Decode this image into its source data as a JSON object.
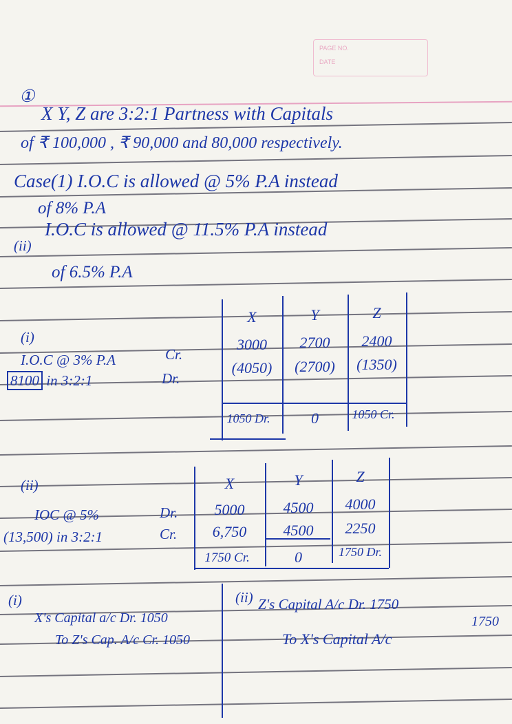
{
  "header": {
    "page_no_label": "PAGE NO.",
    "date_label": "DATE"
  },
  "question": {
    "number": "①",
    "line1": "X Y, Z are  3:2:1 Partness with Capitals",
    "line2": "of ₹ 100,000 , ₹ 90,000 and 80,000 respectively.",
    "case1": "Case(1) I.O.C is allowed @ 5% P.A instead",
    "case1_cont": "of 8%  P.A",
    "case2_marker": "(ii)",
    "case2": "I.O.C  is  allowed  @ 11.5% P.A instead",
    "case2_cont": "of 6.5% P.A"
  },
  "table1": {
    "marker": "(i)",
    "label1": "I.O.C @ 3% P.A",
    "label2_boxed": "8100",
    "label2": "in 3:2:1",
    "cr": "Cr.",
    "dr": "Dr.",
    "headers": [
      "X",
      "Y",
      "Z"
    ],
    "rows": [
      [
        "3000",
        "2700",
        "2400"
      ],
      [
        "(4050)",
        "(2700)",
        "(1350)"
      ],
      [
        "",
        "",
        ""
      ]
    ],
    "totals": [
      "1050 Dr.",
      "0",
      "1050 Cr."
    ]
  },
  "table2": {
    "marker": "(ii)",
    "label1": "IOC @ 5%",
    "label2": "(13,500) in  3:2:1",
    "dr": "Dr.",
    "cr": "Cr.",
    "headers": [
      "X",
      "Y",
      "Z"
    ],
    "rows": [
      [
        "5000",
        "4500",
        "4000"
      ],
      [
        "6,750",
        "4500",
        "2250"
      ]
    ],
    "totals": [
      "1750 Cr.",
      "0",
      "1750 Dr."
    ]
  },
  "entries": {
    "left": {
      "marker": "(i)",
      "line1": "X's Capital a/c  Dr. 1050",
      "line2": "To Z's Cap. A/c Cr. 1050"
    },
    "right": {
      "marker": "(ii)",
      "line1": "Z's Capital A/c    Dr. 1750",
      "amount": "1750",
      "line2": "To X's Capital A/c"
    }
  }
}
